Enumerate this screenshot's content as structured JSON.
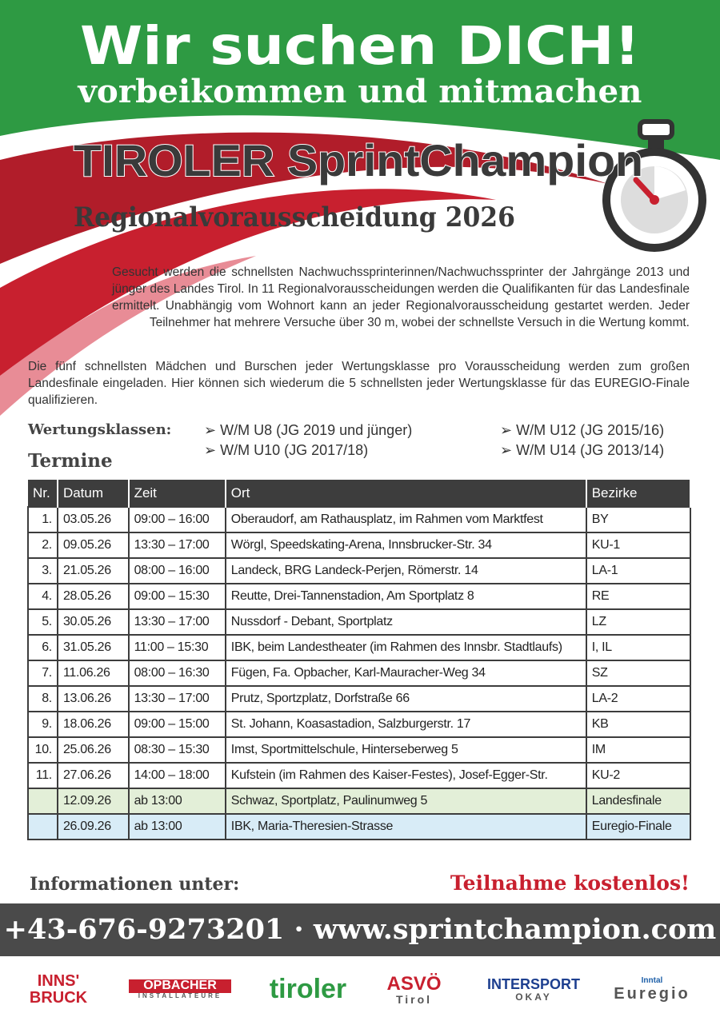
{
  "header": {
    "headline": "Wir suchen DICH!",
    "subline": "vorbeikommen und mitmachen",
    "title": "TIROLER SprintChampion",
    "subtitle": "Regionalvorausscheidung 2026"
  },
  "intro": [
    "Gesucht werden die schnellsten Nachwuchssprinterinnen/Nachwuchssprinter der Jahrgänge 2013 und jünger des Landes Tirol. In 11 Regionalvorausscheidungen werden die Qualifikanten für das Landesfinale ermittelt. Unabhängig vom Wohnort kann an jeder Regionalvorausscheidung gestartet werden. Jeder Teilnehmer hat mehrere Versuche über 30 m, wobei der schnellste Versuch in die Wertung kommt.",
    "Die fünf schnellsten Mädchen und Burschen jeder Wertungsklasse pro Vorausscheidung werden zum großen Landesfinale eingeladen. Hier können sich wiederum die 5 schnellsten jeder Wertungsklasse für das EUREGIO-Finale qualifizieren."
  ],
  "classes": {
    "label": "Wertungsklassen:",
    "items": [
      "W/M U8 (JG 2019 und jünger)",
      "W/M U10 (JG 2017/18)",
      "W/M U12 (JG 2015/16)",
      "W/M U14 (JG 2013/14)"
    ]
  },
  "schedule": {
    "heading": "Termine",
    "columns": [
      "Nr.",
      "Datum",
      "Zeit",
      "Ort",
      "Bezirke"
    ],
    "rows": [
      [
        "1.",
        "03.05.26",
        "09:00 – 16:00",
        "Oberaudorf, am Rathausplatz, im Rahmen vom Marktfest",
        "BY"
      ],
      [
        "2.",
        "09.05.26",
        "13:30 – 17:00",
        "Wörgl, Speedskating-Arena, Innsbrucker-Str. 34",
        "KU-1"
      ],
      [
        "3.",
        "21.05.26",
        "08:00 – 16:00",
        "Landeck, BRG Landeck-Perjen, Römerstr. 14",
        "LA-1"
      ],
      [
        "4.",
        "28.05.26",
        "09:00 – 15:30",
        "Reutte, Drei-Tannenstadion, Am Sportplatz 8",
        "RE"
      ],
      [
        "5.",
        "30.05.26",
        "13:30 – 17:00",
        "Nussdorf - Debant, Sportplatz",
        "LZ"
      ],
      [
        "6.",
        "31.05.26",
        "11:00 – 15:30",
        "IBK, beim Landestheater (im Rahmen des Innsbr. Stadtlaufs)",
        "I, IL"
      ],
      [
        "7.",
        "11.06.26",
        "08:00 – 16:30",
        "Fügen, Fa. Opbacher, Karl-Mauracher-Weg 34",
        "SZ"
      ],
      [
        "8.",
        "13.06.26",
        "13:30 – 17:00",
        "Prutz, Sportzplatz, Dorfstraße 66",
        "LA-2"
      ],
      [
        "9.",
        "18.06.26",
        "09:00 – 15:00",
        "St. Johann, Koasastadion, Salzburgerstr. 17",
        "KB"
      ],
      [
        "10.",
        "25.06.26",
        "08:30 – 15:30",
        "Imst, Sportmittelschule, Hinterseberweg 5",
        "IM"
      ],
      [
        "11.",
        "27.06.26",
        "14:00 – 18:00",
        "Kufstein (im Rahmen des Kaiser-Festes), Josef-Egger-Str.",
        "KU-2"
      ],
      [
        null,
        "12.09.26",
        "ab 13:00",
        "Schwaz, Sportplatz, Paulinumweg 5",
        "Landesfinale"
      ],
      [
        null,
        "26.09.26",
        "ab 13:00",
        "IBK, Maria-Theresien-Strasse",
        "Euregio-Finale"
      ]
    ]
  },
  "footer": {
    "info": "Informationen unter:",
    "free": "Teilnahme kostenlos!",
    "contact": "+43-676-9273201 · www.sprintchampion.com"
  },
  "sponsors": [
    [
      "INNS'",
      "BRUCK"
    ],
    [
      "OPBACHER",
      "INSTALLATEURE"
    ],
    [
      "tiroler"
    ],
    [
      "ASVÖ",
      "Tirol"
    ],
    [
      "INTERSPORT",
      "OKAY"
    ],
    [
      "Inntal",
      "Euregio"
    ]
  ]
}
